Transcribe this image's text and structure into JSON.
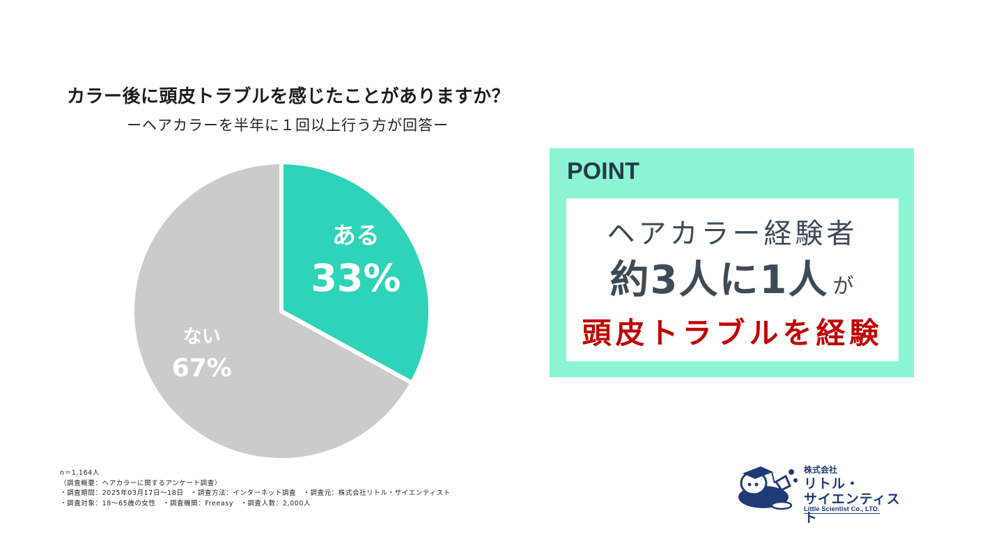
{
  "chart_data": {
    "type": "pie",
    "title": "カラー後に頭皮トラブルを感じたことがありますか？",
    "subtitle": "ーヘアカラーを半年に１回以上行う方が回答ー",
    "slices": [
      {
        "label": "ある",
        "percent_label": "33%",
        "value": 33,
        "color": "#2ed3b8"
      },
      {
        "label": "ない",
        "percent_label": "67%",
        "value": 67,
        "color": "#cbcbcb"
      }
    ],
    "start": "12 o'clock, clockwise",
    "legend": "none"
  },
  "footnote": [
    "n＝1,164人",
    "（調査概要：ヘアカラーに関するアンケート調査）",
    "・調査期間：2025年03月17日～18日　・調査方法：インターネット調査　・調査元：株式会社リトル・サイエンティスト",
    "・調査対象：18～65歳の女性　・調査機関：Freeasy　・調査人数：2,000人"
  ],
  "point": {
    "label": "POINT",
    "line1": "ヘアカラー経験者",
    "line2": "約3人に1人",
    "line2_suffix": "が",
    "line3": "頭皮トラブルを経験",
    "box_color": "#8bf5d3",
    "highlight_color": "#c00000"
  },
  "logo": {
    "company_prefix": "株式会社",
    "name_line1": "リトル・",
    "name_line2": "サイエンティスト",
    "english": "Little Scientist Co., LTD."
  }
}
